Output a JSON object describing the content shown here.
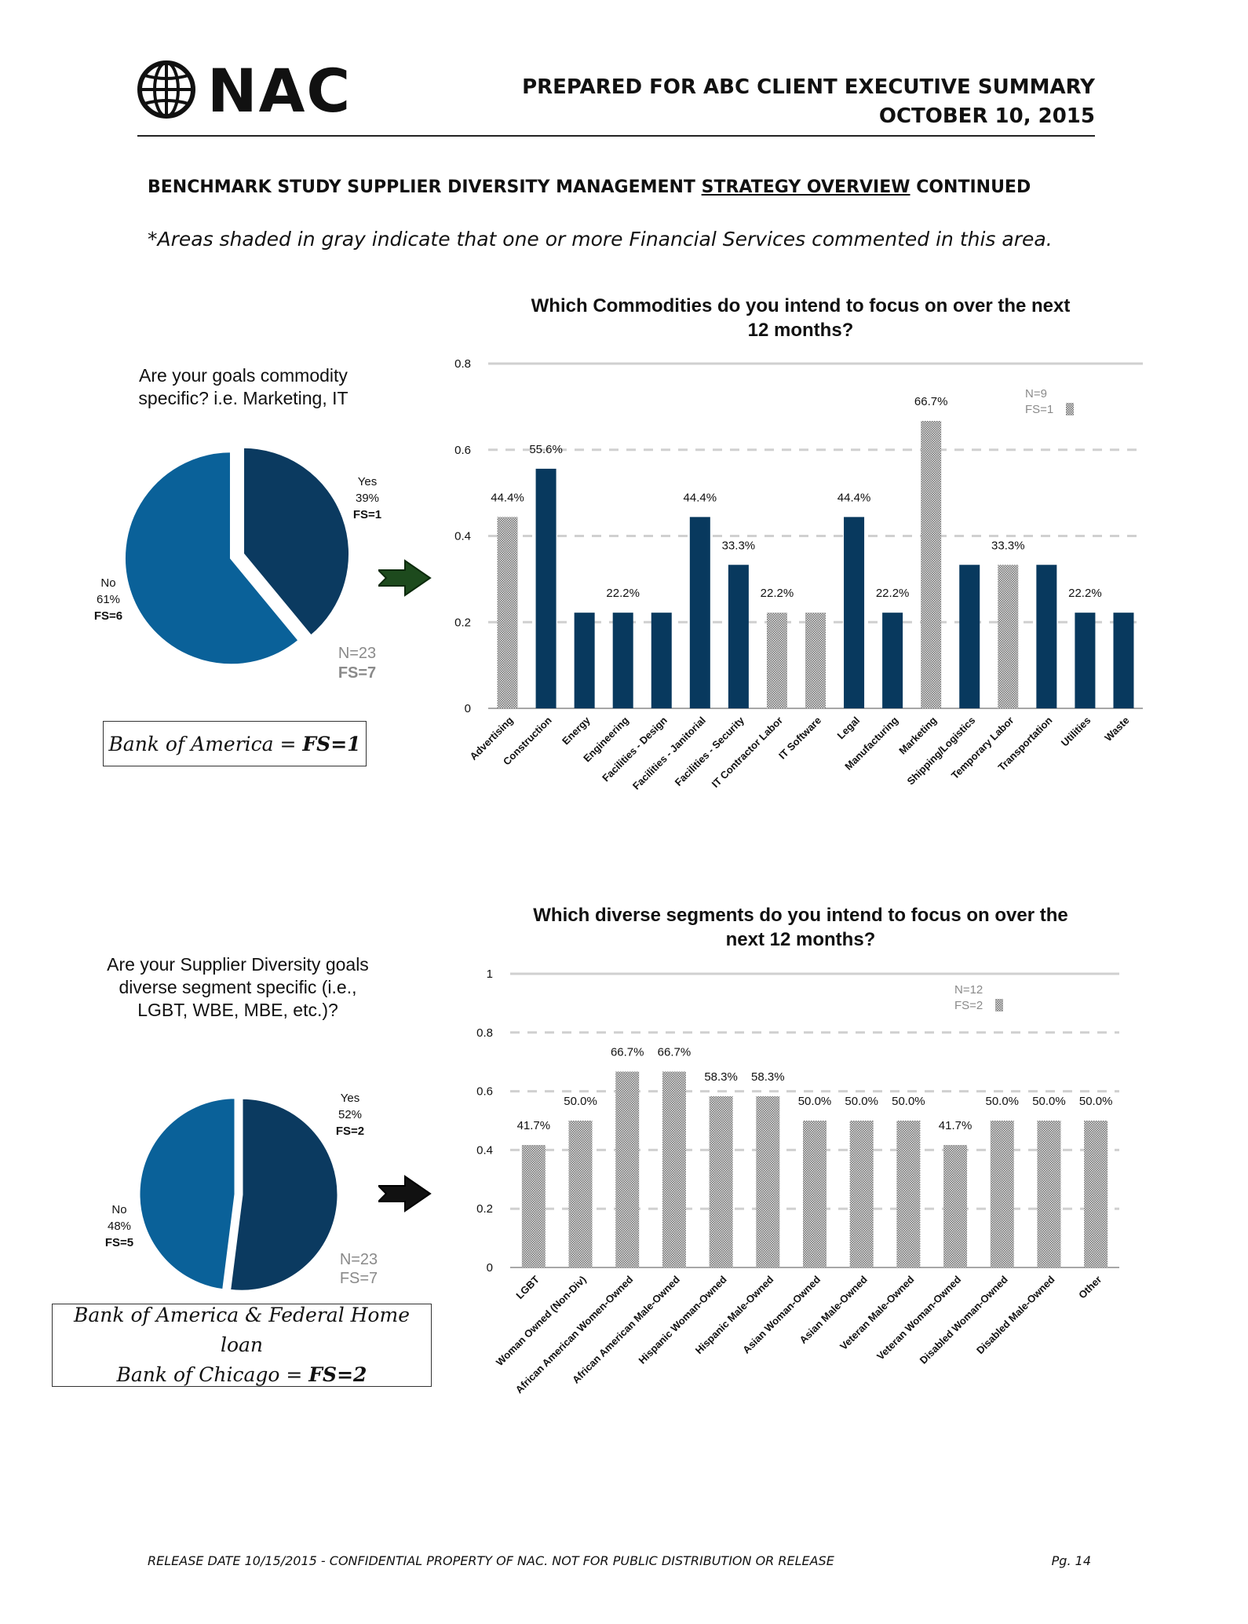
{
  "header": {
    "logo_text": "NAC",
    "title_line1": "PREPARED FOR ABC CLIENT EXECUTIVE SUMMARY",
    "title_line2": "OCTOBER 10, 2015"
  },
  "section": {
    "title_prefix": "BENCHMARK STUDY SUPPLIER DIVERSITY MANAGEMENT ",
    "title_underlined": "STRATEGY OVERVIEW",
    "title_suffix": " CONTINUED",
    "note": "*Areas shaded in gray indicate that one or more Financial Services commented in this area."
  },
  "panel1": {
    "question": "Are your goals commodity specific? i.e. Marketing, IT",
    "pie": {
      "slices": [
        {
          "label": "Yes",
          "pct": "39%",
          "fs": "FS=1",
          "value": 39,
          "color": "#0b3a60"
        },
        {
          "label": "No",
          "pct": "61%",
          "fs": "FS=6",
          "value": 61,
          "color": "#0a6199"
        }
      ],
      "n_label": "N=23",
      "fs_label": "FS=7"
    },
    "box_text_prefix": "Bank of America = ",
    "box_text_bold": "FS=1"
  },
  "panel2": {
    "question": "Are your Supplier Diversity goals diverse segment specific (i.e., LGBT, WBE, MBE, etc.)?",
    "pie": {
      "slices": [
        {
          "label": "Yes",
          "pct": "52%",
          "fs": "FS=2",
          "value": 52,
          "color": "#0b3a60"
        },
        {
          "label": "No",
          "pct": "48%",
          "fs": "FS=5",
          "value": 48,
          "color": "#0a6199"
        }
      ],
      "n_label": "N=23",
      "fs_label": "FS=7"
    },
    "box_text_line1": "Bank of America & Federal Home loan",
    "box_text_line2_prefix": "Bank of Chicago = ",
    "box_text_bold": "FS=2"
  },
  "chart_data": [
    {
      "type": "bar",
      "title": "Which Commodities do you intend to focus on over the next 12 months?",
      "categories": [
        "Advertising",
        "Construction",
        "Energy",
        "Engineering",
        "Facilities - Design",
        "Facilities - Janitorial",
        "Facilities - Security",
        "IT Contractor Labor",
        "IT Software",
        "Legal",
        "Manufacturing",
        "Marketing",
        "Shipping/Logistics",
        "Temporary Labor",
        "Transportation",
        "Utilities",
        "Waste"
      ],
      "values": [
        0.444,
        0.556,
        0.222,
        0.222,
        0.222,
        0.444,
        0.333,
        0.222,
        0.222,
        0.444,
        0.222,
        0.667,
        0.333,
        0.333,
        0.333,
        0.222,
        0.222
      ],
      "shaded": [
        true,
        false,
        false,
        false,
        false,
        false,
        false,
        true,
        true,
        false,
        false,
        true,
        false,
        true,
        false,
        false,
        false
      ],
      "data_labels": [
        "44.4%",
        "55.6%",
        "",
        "22.2%",
        "",
        "44.4%",
        "33.3%",
        "22.2%",
        "",
        "44.4%",
        "22.2%",
        "66.7%",
        "",
        "33.3%",
        "",
        "22.2%",
        ""
      ],
      "yticks": [
        "0",
        "0.2",
        "0.4",
        "0.6",
        "0.8"
      ],
      "ylim": [
        0,
        0.8
      ],
      "legend_n": "N=9",
      "legend_fs": "FS=1",
      "solid_color": "#08395e",
      "shade_color": "#b0b0b0"
    },
    {
      "type": "bar",
      "title": "Which diverse segments do you intend to focus on over the next 12 months?",
      "categories": [
        "LGBT",
        "Woman Owned (Non-Div)",
        "African American Women-Owned",
        "African American Male-Owned",
        "Hispanic Woman-Owned",
        "Hispanic Male-Owned",
        "Asian Woman-Owned",
        "Asian Male-Owned",
        "Veteran Male-Owned",
        "Veteran Woman-Owned",
        "Disabled Woman-Owned",
        "Disabled Male-Owned",
        "Other"
      ],
      "values": [
        0.417,
        0.5,
        0.667,
        0.667,
        0.583,
        0.583,
        0.5,
        0.5,
        0.5,
        0.417,
        0.5,
        0.5,
        0.5
      ],
      "shaded": [
        true,
        true,
        true,
        true,
        true,
        true,
        true,
        true,
        true,
        true,
        true,
        true,
        true
      ],
      "data_labels": [
        "41.7%",
        "50.0%",
        "66.7%",
        "66.7%",
        "58.3%",
        "58.3%",
        "50.0%",
        "50.0%",
        "50.0%",
        "41.7%",
        "50.0%",
        "50.0%",
        "50.0%"
      ],
      "yticks": [
        "0",
        "0.2",
        "0.4",
        "0.6",
        "0.8",
        "1"
      ],
      "ylim": [
        0,
        1
      ],
      "legend_n": "N=12",
      "legend_fs": "FS=2",
      "solid_color": "#08395e",
      "shade_color": "#b0b0b0"
    }
  ],
  "footer": {
    "text": "RELEASE DATE 10/15/2015 - CONFIDENTIAL PROPERTY OF NAC. NOT FOR PUBLIC DISTRIBUTION OR RELEASE",
    "page": "Pg. 14"
  }
}
